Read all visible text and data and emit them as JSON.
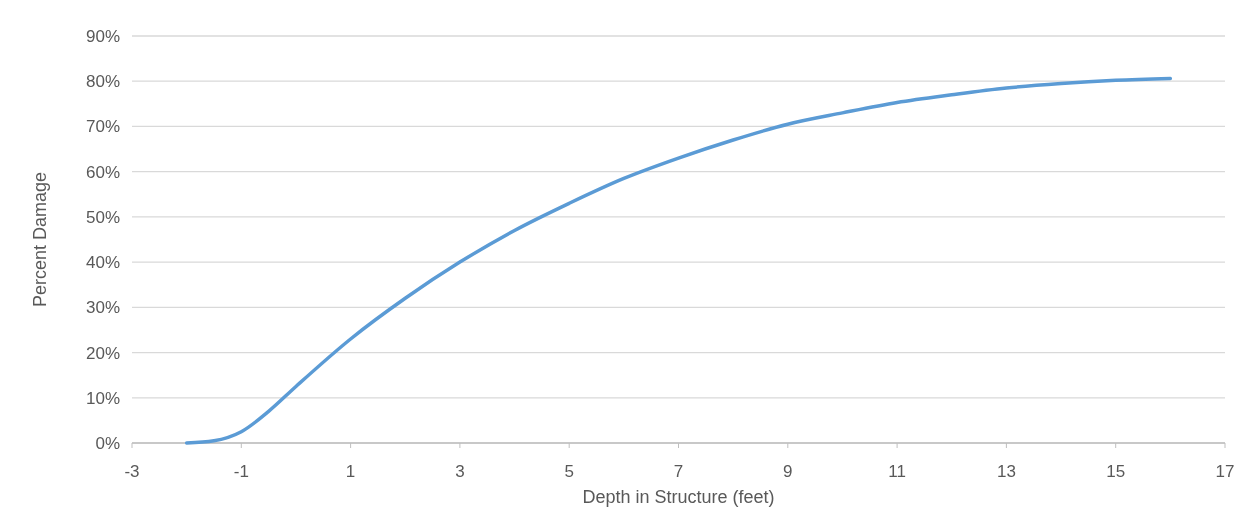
{
  "chart_data": {
    "type": "line",
    "xlabel": "Depth in Structure (feet)",
    "ylabel": "Percent Damage",
    "xlim": [
      -3,
      17
    ],
    "xticks": [
      -3,
      -1,
      1,
      3,
      5,
      7,
      9,
      11,
      13,
      15,
      17
    ],
    "ylim": [
      0,
      90
    ],
    "yticks": [
      {
        "value": 0,
        "label": "0%"
      },
      {
        "value": 10,
        "label": "10%"
      },
      {
        "value": 20,
        "label": "20%"
      },
      {
        "value": 30,
        "label": "30%"
      },
      {
        "value": 40,
        "label": "40%"
      },
      {
        "value": 50,
        "label": "50%"
      },
      {
        "value": 60,
        "label": "60%"
      },
      {
        "value": 70,
        "label": "70%"
      },
      {
        "value": 80,
        "label": "80%"
      },
      {
        "value": 90,
        "label": "90%"
      }
    ],
    "grid": "y",
    "marker": "none",
    "line_style": "solid",
    "series": [
      {
        "color": "#5b9bd5",
        "x": [
          -2,
          -1.5,
          -1,
          -0.5,
          0,
          1,
          2,
          3,
          4,
          5,
          6,
          7,
          8,
          9,
          10,
          11,
          12,
          13,
          14,
          15,
          16
        ],
        "values": [
          0,
          0.5,
          2.5,
          7,
          12.5,
          23,
          32,
          40,
          47,
          53,
          58.5,
          63,
          67,
          70.5,
          73,
          75.3,
          77,
          78.5,
          79.5,
          80.2,
          80.6
        ]
      }
    ]
  }
}
